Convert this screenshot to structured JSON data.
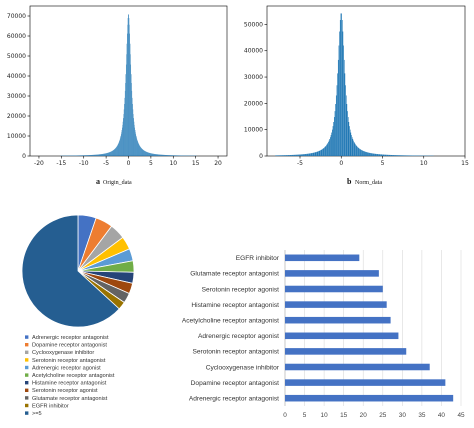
{
  "chart_data": [
    {
      "type": "histogram",
      "caption_letter": "a",
      "caption": "Origin_data",
      "color": "#1f77b4",
      "xlim": [
        -22,
        22
      ],
      "ylim": [
        0,
        75000
      ],
      "xticks": [
        -20,
        -15,
        -10,
        -5,
        0,
        5,
        10,
        15,
        20
      ],
      "yticks": [
        0,
        10000,
        20000,
        30000,
        40000,
        50000,
        60000,
        70000
      ],
      "distribution": {
        "center": 0,
        "peak": 71000,
        "scale": 0.75,
        "support": [
          -20,
          20
        ]
      }
    },
    {
      "type": "histogram",
      "caption_letter": "b",
      "caption": "Norm_data",
      "color": "#1f77b4",
      "xlim": [
        -9,
        15
      ],
      "ylim": [
        0,
        57000
      ],
      "xticks": [
        -5,
        0,
        5,
        10,
        15
      ],
      "yticks": [
        0,
        10000,
        20000,
        30000,
        40000,
        50000
      ],
      "distribution": {
        "center": 0,
        "peak": 54500,
        "scale": 0.55,
        "support": [
          -8,
          12
        ]
      }
    },
    {
      "type": "pie",
      "labels": [
        "Adrenergic receptor antagonist",
        "Dopamine receptor antagonist",
        "Cyclooxygenase inhibitor",
        "Serotonin receptor antagonist",
        "Adrenergic receptor agonist",
        "Acetylcholine receptor antagonist",
        "Histamine receptor antagonist",
        "Serotonin receptor agonist",
        "Glutamate receptor antagonist",
        "EGFR inhibitor",
        ">=5"
      ],
      "values": [
        43,
        41,
        37,
        31,
        29,
        27,
        26,
        25,
        24,
        19,
        518
      ],
      "colors": [
        "#4472c4",
        "#ed7d31",
        "#a5a5a5",
        "#ffc000",
        "#5b9bd5",
        "#70ad47",
        "#264478",
        "#9e480e",
        "#636363",
        "#997300",
        "#255e91"
      ]
    },
    {
      "type": "bar",
      "orientation": "horizontal",
      "categories": [
        "Adrenergic receptor antagonist",
        "Dopamine receptor antagonist",
        "Cyclooxygenase inhibitor",
        "Serotonin receptor antagonist",
        "Adrenergic receptor agonist",
        "Acetylcholine receptor antagonist",
        "Histamine receptor antagonist",
        "Serotonin receptor agonist",
        "Glutamate receptor antagonist",
        "EGFR inhibitor"
      ],
      "values": [
        43,
        41,
        37,
        31,
        29,
        27,
        26,
        25,
        24,
        19
      ],
      "xlim": [
        0,
        45
      ],
      "xticks": [
        0,
        5,
        10,
        15,
        20,
        25,
        30,
        35,
        40,
        45
      ],
      "color": "#4472c4"
    }
  ]
}
